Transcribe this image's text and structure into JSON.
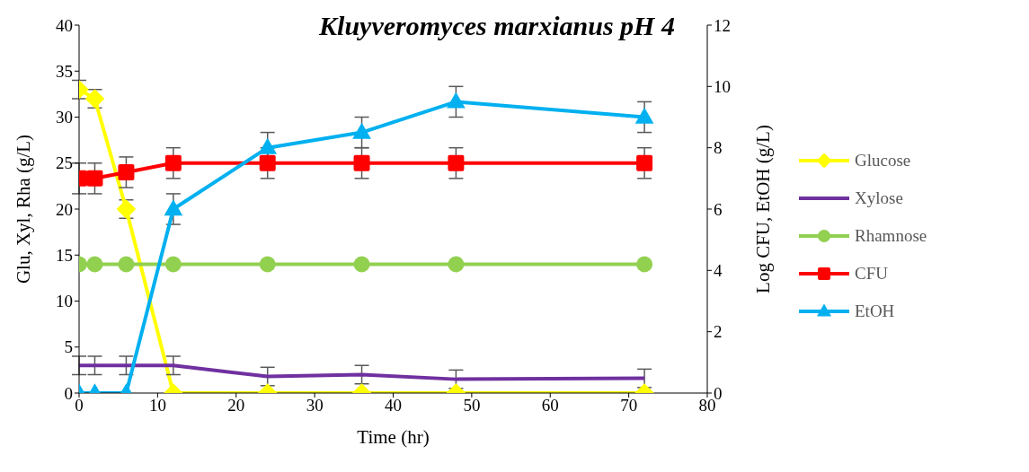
{
  "chart_data": {
    "type": "line",
    "title": "Kluyveromyces marxianus pH 4",
    "xlabel": "Time (hr)",
    "ylabel": "Glu, Xyl, Rha (g/L)",
    "y2label": "Log CFU, EtOH (g/L)",
    "x": [
      0,
      2,
      6,
      12,
      24,
      36,
      48,
      72
    ],
    "xlim": [
      0,
      80
    ],
    "xticks": [
      0,
      10,
      20,
      30,
      40,
      50,
      60,
      70,
      80
    ],
    "ylim": [
      0,
      40
    ],
    "yticks": [
      0,
      5,
      10,
      15,
      20,
      25,
      30,
      35,
      40
    ],
    "y2lim": [
      0,
      12
    ],
    "y2ticks": [
      0,
      2,
      4,
      6,
      8,
      10,
      12
    ],
    "grid": false,
    "legend": "right",
    "line_style": "solid",
    "series": [
      {
        "name": "Glucose",
        "color": "#ffff00",
        "marker": "diamond",
        "values": [
          33,
          32,
          20,
          0,
          0,
          0,
          0,
          0
        ],
        "errors": [
          1,
          1,
          1,
          null,
          null,
          null,
          null,
          null
        ]
      },
      {
        "name": "Xylose",
        "color": "#7030a0",
        "marker": "none",
        "values": [
          3,
          3,
          3,
          3,
          1.8,
          2,
          1.5,
          1.6
        ],
        "errors": [
          1,
          1,
          1,
          1,
          1,
          1,
          1,
          1
        ]
      },
      {
        "name": "Rhamnose",
        "color": "#92d050",
        "marker": "circle",
        "values": [
          14,
          14,
          14,
          14,
          14,
          14,
          14,
          14
        ]
      },
      {
        "name": "CFU",
        "color": "#ff0000",
        "marker": "square",
        "axis": "y2",
        "values": [
          7,
          7,
          7.2,
          7.5,
          7.5,
          7.5,
          7.5,
          7.5
        ],
        "errors": [
          0.5,
          0.5,
          0.5,
          0.5,
          0.5,
          0.5,
          0.5,
          0.5
        ]
      },
      {
        "name": "EtOH",
        "color": "#00b0f0",
        "marker": "triangle",
        "axis": "y2",
        "values": [
          0,
          0,
          0,
          6,
          8,
          8.5,
          9.5,
          9
        ],
        "errors": [
          null,
          null,
          null,
          0.5,
          0.5,
          0.5,
          0.5,
          0.5
        ]
      }
    ]
  }
}
